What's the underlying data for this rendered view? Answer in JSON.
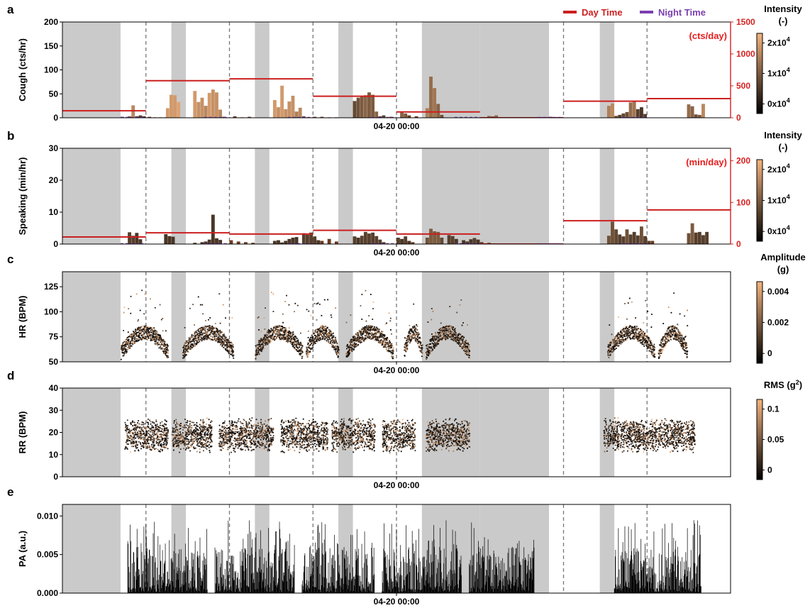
{
  "figure": {
    "x_tick_label": "04-20 00:00"
  },
  "legend": {
    "day_label": "Day Time",
    "night_label": "Night Time",
    "day_color": "#cc1f1f",
    "night_color": "#7b3fb0"
  },
  "colors": {
    "night_shade": "#cacaca",
    "dark": "#000000",
    "light": "#f7b57f",
    "right_axis": "#d62020"
  },
  "panels": [
    {
      "id": "a",
      "ylabel": "Cough (cts/hr)",
      "yticks": [
        "0",
        "50",
        "100",
        "150",
        "200"
      ],
      "ylim": [
        0,
        200
      ],
      "right_unit": "(cts/day)",
      "right_ticks": [
        "0",
        "500",
        "1000",
        "1500"
      ],
      "colorbar": {
        "title1": "Intensity",
        "title2": "(-)",
        "ticks": [
          {
            "base": "2x10",
            "exp": "4"
          },
          {
            "base": "1x10",
            "exp": "4"
          },
          {
            "base": "0x10",
            "exp": "4"
          }
        ]
      }
    },
    {
      "id": "b",
      "ylabel": "Speaking (min/hr)",
      "yticks": [
        "0",
        "10",
        "20",
        "30"
      ],
      "ylim": [
        0,
        30
      ],
      "right_unit": "(min/day)",
      "right_ticks": [
        "0",
        "100",
        "200"
      ],
      "colorbar": {
        "title1": "Intensity",
        "title2": "(-)",
        "ticks": [
          {
            "base": "2x10",
            "exp": "4"
          },
          {
            "base": "1x10",
            "exp": "4"
          },
          {
            "base": "0x10",
            "exp": "4"
          }
        ]
      }
    },
    {
      "id": "c",
      "ylabel": "HR (BPM)",
      "yticks": [
        "50",
        "75",
        "100",
        "125"
      ],
      "ylim": [
        50,
        140
      ],
      "colorbar": {
        "title1": "Amplitude",
        "title2": "(g)",
        "ticks": [
          {
            "base": "0.004",
            "exp": ""
          },
          {
            "base": "0.002",
            "exp": ""
          },
          {
            "base": "0",
            "exp": ""
          }
        ]
      }
    },
    {
      "id": "d",
      "ylabel": "RR (BPM)",
      "yticks": [
        "0",
        "10",
        "20",
        "30",
        "40"
      ],
      "ylim": [
        0,
        40
      ],
      "colorbar": {
        "title1": "RMS (g",
        "title1_sup": "2",
        "title1_end": ")",
        "title2": "",
        "ticks": [
          {
            "base": "0.1",
            "exp": ""
          },
          {
            "base": "0.05",
            "exp": ""
          },
          {
            "base": "0",
            "exp": ""
          }
        ]
      }
    },
    {
      "id": "e",
      "ylabel": "PA (a.u.)",
      "yticks": [
        "0.000",
        "0.005",
        "0.010"
      ],
      "ylim": [
        0,
        0.0115
      ]
    }
  ],
  "chart_data": {
    "type": "bar",
    "x_unit": "hours from start",
    "x_range": [
      0,
      167
    ],
    "night_periods": [
      [
        0,
        16
      ],
      [
        30,
        34
      ],
      [
        53,
        57
      ],
      [
        76,
        80
      ],
      [
        99,
        115
      ],
      [
        115,
        134
      ],
      [
        148,
        152
      ]
    ],
    "day_boundaries": [
      23,
      46,
      69,
      92,
      115,
      138,
      161
    ],
    "cough": {
      "night_bars": [
        [
          16,
          2
        ],
        [
          18,
          1
        ],
        [
          20,
          1
        ],
        [
          22,
          2
        ],
        [
          23.5,
          2
        ],
        [
          25,
          1
        ],
        [
          26.5,
          1
        ],
        [
          28,
          1
        ],
        [
          44,
          2
        ],
        [
          47,
          3
        ],
        [
          49,
          1
        ],
        [
          51,
          2
        ],
        [
          67,
          1
        ],
        [
          69,
          2
        ],
        [
          71,
          2
        ],
        [
          73,
          1
        ],
        [
          75,
          1
        ],
        [
          90,
          2
        ],
        [
          93,
          3
        ],
        [
          95,
          5
        ],
        [
          97,
          3
        ],
        [
          134,
          2
        ],
        [
          136,
          1
        ],
        [
          157,
          1
        ],
        [
          159,
          2
        ],
        [
          160,
          1
        ]
      ],
      "day_bars": [
        [
          18,
          3,
          0.5
        ],
        [
          19,
          26,
          0.75
        ],
        [
          20,
          3,
          0.3
        ],
        [
          21,
          5,
          0.35
        ],
        [
          22,
          3,
          0.3
        ],
        [
          28.5,
          20,
          0.85
        ],
        [
          29.5,
          48,
          0.85
        ],
        [
          30.5,
          47,
          0.85
        ],
        [
          31.5,
          33,
          0.9
        ],
        [
          36,
          56,
          0.85
        ],
        [
          37,
          33,
          0.8
        ],
        [
          38,
          42,
          0.8
        ],
        [
          39,
          25,
          0.75
        ],
        [
          40,
          52,
          0.85
        ],
        [
          41,
          59,
          0.8
        ],
        [
          42,
          53,
          0.8
        ],
        [
          43,
          17,
          0.75
        ],
        [
          58,
          37,
          0.85
        ],
        [
          59,
          22,
          0.8
        ],
        [
          60,
          67,
          0.85
        ],
        [
          61,
          18,
          0.8
        ],
        [
          62,
          34,
          0.8
        ],
        [
          63,
          46,
          0.8
        ],
        [
          64,
          13,
          0.7
        ],
        [
          65,
          21,
          0.75
        ],
        [
          66,
          3,
          0.4
        ],
        [
          80,
          35,
          0.4
        ],
        [
          81,
          42,
          0.45
        ],
        [
          82,
          45,
          0.5
        ],
        [
          83,
          47,
          0.55
        ],
        [
          84,
          53,
          0.5
        ],
        [
          85,
          48,
          0.5
        ],
        [
          86,
          13,
          0.55
        ],
        [
          87,
          3,
          0.35
        ],
        [
          88,
          5,
          0.35
        ],
        [
          93,
          11,
          0.55
        ],
        [
          94,
          9,
          0.5
        ],
        [
          100,
          20,
          0.7
        ],
        [
          101,
          86,
          0.6
        ],
        [
          102,
          62,
          0.65
        ],
        [
          103,
          29,
          0.55
        ],
        [
          104,
          6,
          0.45
        ],
        [
          117,
          4,
          0.6
        ],
        [
          118,
          3,
          0.5
        ],
        [
          119,
          5,
          0.55
        ],
        [
          150,
          25,
          0.7
        ],
        [
          151,
          30,
          0.75
        ],
        [
          152,
          4,
          0.45
        ],
        [
          153,
          6,
          0.35
        ],
        [
          154,
          9,
          0.4
        ],
        [
          155,
          12,
          0.45
        ],
        [
          156,
          32,
          0.6
        ],
        [
          157,
          34,
          0.65
        ],
        [
          158,
          18,
          0.35
        ],
        [
          159,
          22,
          0.3
        ],
        [
          160,
          8,
          0.35
        ],
        [
          172,
          28,
          0.6
        ],
        [
          173,
          24,
          0.55
        ],
        [
          174,
          7,
          0.45
        ],
        [
          175,
          6,
          0.5
        ],
        [
          176,
          29,
          0.75
        ]
      ],
      "day_lines": [
        [
          0,
          23,
          110
        ],
        [
          23,
          46,
          580
        ],
        [
          46,
          69,
          610
        ],
        [
          69,
          92,
          338
        ],
        [
          92,
          115,
          92
        ],
        [
          115,
          138,
          0
        ],
        [
          138,
          161,
          260
        ],
        [
          161,
          184,
          300
        ]
      ],
      "night_lines": [
        [
          16,
          23,
          3
        ],
        [
          39,
          46,
          3
        ],
        [
          62,
          69,
          3
        ],
        [
          85,
          92,
          3
        ],
        [
          108,
          115,
          3
        ],
        [
          131,
          138,
          3
        ],
        [
          154,
          161,
          3
        ]
      ]
    },
    "speaking": {
      "day_bars": [
        [
          18,
          3.7,
          0.35
        ],
        [
          19,
          2.6,
          0.35
        ],
        [
          20,
          3.5,
          0.3
        ],
        [
          21,
          1.5,
          0.3
        ],
        [
          28,
          3.1,
          0.3
        ],
        [
          29,
          2.5,
          0.3
        ],
        [
          30,
          2.3,
          0.3
        ],
        [
          36,
          0.4,
          0.3
        ],
        [
          38,
          0.6,
          0.3
        ],
        [
          39,
          0.8,
          0.3
        ],
        [
          40,
          1.4,
          0.3
        ],
        [
          41,
          9.2,
          0.3
        ],
        [
          42,
          1.8,
          0.3
        ],
        [
          43,
          1.3,
          0.3
        ],
        [
          58,
          1.0,
          0.3
        ],
        [
          59,
          1.2,
          0.3
        ],
        [
          60,
          0.5,
          0.3
        ],
        [
          61,
          1.0,
          0.3
        ],
        [
          62,
          1.6,
          0.3
        ],
        [
          63,
          2.0,
          0.3
        ],
        [
          64,
          2.2,
          0.3
        ],
        [
          66,
          3.4,
          0.35
        ],
        [
          67,
          2.9,
          0.35
        ],
        [
          68,
          3.6,
          0.35
        ],
        [
          69,
          2.4,
          0.35
        ],
        [
          70,
          1.2,
          0.3
        ],
        [
          80,
          2.4,
          0.35
        ],
        [
          81,
          2.0,
          0.3
        ],
        [
          82,
          2.6,
          0.35
        ],
        [
          83,
          3.8,
          0.35
        ],
        [
          84,
          3.3,
          0.35
        ],
        [
          85,
          3.6,
          0.35
        ],
        [
          86,
          2.5,
          0.35
        ],
        [
          87,
          1.4,
          0.35
        ],
        [
          88,
          0.6,
          0.35
        ],
        [
          92,
          2.0,
          0.35
        ],
        [
          93,
          1.6,
          0.3
        ],
        [
          94,
          2.4,
          0.35
        ],
        [
          95,
          1.0,
          0.3
        ],
        [
          100,
          2.0,
          0.45
        ],
        [
          101,
          4.8,
          0.5
        ],
        [
          102,
          4.0,
          0.5
        ],
        [
          103,
          3.8,
          0.5
        ],
        [
          104,
          2.0,
          0.4
        ],
        [
          106,
          2.8,
          0.35
        ],
        [
          107,
          2.5,
          0.35
        ],
        [
          108,
          1.6,
          0.3
        ],
        [
          110,
          1.2,
          0.3
        ],
        [
          111,
          0.8,
          0.3
        ],
        [
          112,
          1.5,
          0.3
        ],
        [
          113,
          1.9,
          0.35
        ],
        [
          114,
          1.4,
          0.3
        ],
        [
          150,
          2.6,
          0.45
        ],
        [
          151,
          7.0,
          0.45
        ],
        [
          152,
          4.6,
          0.4
        ],
        [
          153,
          3.0,
          0.35
        ],
        [
          154,
          2.4,
          0.35
        ],
        [
          155,
          4.6,
          0.45
        ],
        [
          156,
          3.0,
          0.35
        ],
        [
          157,
          3.8,
          0.35
        ],
        [
          158,
          2.7,
          0.35
        ],
        [
          159,
          5.5,
          0.45
        ],
        [
          160,
          2.5,
          0.35
        ],
        [
          161,
          1.0,
          0.35
        ],
        [
          172,
          3.4,
          0.45
        ],
        [
          173,
          6.5,
          0.5
        ],
        [
          174,
          3.6,
          0.35
        ],
        [
          175,
          3.8,
          0.35
        ],
        [
          176,
          2.8,
          0.35
        ],
        [
          177,
          3.8,
          0.35
        ]
      ],
      "night_bars": [
        [
          46,
          1.2
        ],
        [
          48,
          0.8
        ],
        [
          50,
          0.6
        ],
        [
          52,
          0.4
        ],
        [
          69,
          1.6
        ],
        [
          71,
          1.0
        ],
        [
          73,
          1.6
        ],
        [
          75,
          0.8
        ],
        [
          92,
          1.4
        ],
        [
          94,
          0.8
        ],
        [
          96,
          0.6
        ],
        [
          115,
          0.6
        ],
        [
          117,
          0.4
        ],
        [
          160,
          0.8
        ],
        [
          162,
          1.0
        ]
      ],
      "day_lines": [
        [
          0,
          23,
          17
        ],
        [
          23,
          46,
          27
        ],
        [
          46,
          69,
          24
        ],
        [
          69,
          92,
          33
        ],
        [
          92,
          115,
          24
        ],
        [
          115,
          138,
          0
        ],
        [
          138,
          161,
          56
        ],
        [
          161,
          184,
          82
        ]
      ],
      "night_lines": [
        [
          16,
          23,
          0.5
        ],
        [
          39,
          46,
          0.5
        ],
        [
          62,
          69,
          0.5
        ],
        [
          85,
          92,
          0.5
        ],
        [
          108,
          115,
          0.5
        ],
        [
          131,
          138,
          0.3
        ],
        [
          154,
          161,
          0.4
        ]
      ]
    },
    "hr": {
      "segments": [
        [
          16,
          29,
          "wake"
        ],
        [
          33,
          47,
          "wake"
        ],
        [
          53,
          66,
          "wake"
        ],
        [
          67,
          76,
          "wake"
        ],
        [
          78,
          91,
          "wake"
        ],
        [
          94,
          99,
          "wake"
        ],
        [
          100,
          112,
          "wake"
        ],
        [
          150,
          163,
          "wake"
        ],
        [
          164,
          172,
          "wake"
        ]
      ]
    },
    "rr": {
      "segments": [
        [
          17,
          29
        ],
        [
          30,
          41
        ],
        [
          43,
          58
        ],
        [
          60,
          73
        ],
        [
          74,
          86
        ],
        [
          88,
          97
        ],
        [
          100,
          112
        ],
        [
          149,
          174
        ]
      ]
    },
    "pa": {
      "segments": [
        [
          18,
          40
        ],
        [
          42,
          64
        ],
        [
          66,
          86
        ],
        [
          88,
          110
        ],
        [
          112,
          130
        ],
        [
          152,
          176
        ]
      ]
    }
  }
}
